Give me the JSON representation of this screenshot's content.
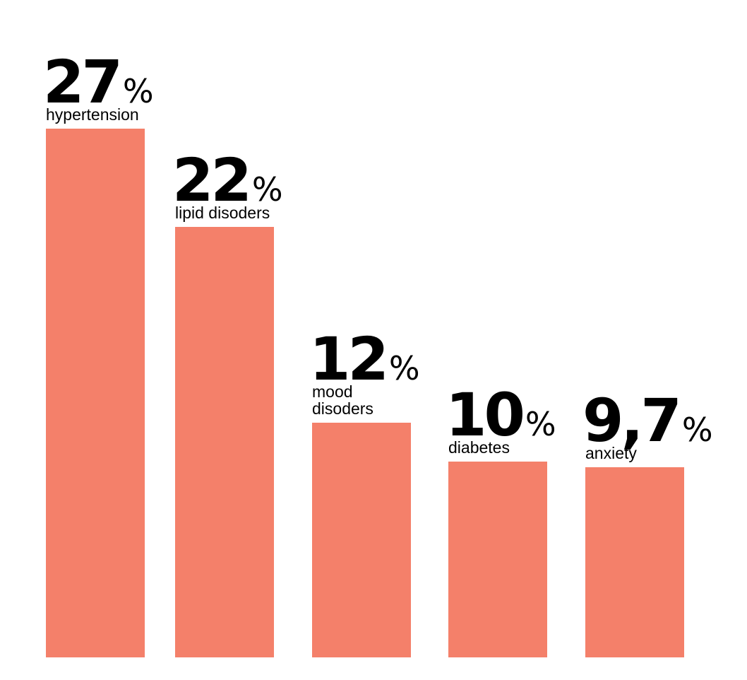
{
  "chart_data": {
    "type": "bar",
    "categories": [
      "hypertension",
      "lipid disoders",
      "mood disoders",
      "diabetes",
      "anxiety"
    ],
    "values": [
      27,
      22,
      12,
      10,
      9.7
    ],
    "value_labels": [
      "27",
      "22",
      "12",
      "10",
      "9,7"
    ],
    "value_suffix": "%",
    "ylim": [
      0,
      27
    ],
    "grid": false,
    "colors": {
      "bar": "#f4806a",
      "text": "#000000"
    }
  }
}
